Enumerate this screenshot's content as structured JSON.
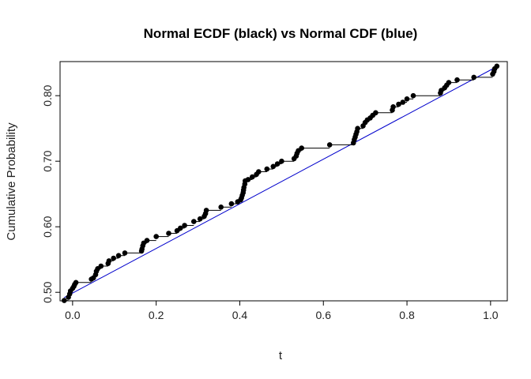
{
  "chart_data": {
    "type": "line",
    "title": "Normal ECDF (black) vs Normal CDF (blue)",
    "xlabel": "t",
    "ylabel": "Cumulative Probability",
    "xlim": [
      -0.03,
      1.04
    ],
    "ylim": [
      0.487,
      0.852
    ],
    "xticks": [
      0.0,
      0.2,
      0.4,
      0.6,
      0.8,
      1.0
    ],
    "xtick_labels": [
      "0.0",
      "0.2",
      "0.4",
      "0.6",
      "0.8",
      "1.0"
    ],
    "yticks": [
      0.5,
      0.6,
      0.7,
      0.8
    ],
    "ytick_labels": [
      "0.50",
      "0.60",
      "0.70",
      "0.80"
    ],
    "grid": false,
    "legend": "none",
    "colors": {
      "ecdf": "#000000",
      "cdf": "#0000cc",
      "frame": "#000000"
    },
    "series": [
      {
        "style": "step-points",
        "color": "#000000",
        "points": [
          [
            -0.02,
            0.4875
          ],
          [
            -0.01,
            0.4925
          ],
          [
            -0.007,
            0.4975
          ],
          [
            -0.005,
            0.502
          ],
          [
            0.0,
            0.506
          ],
          [
            0.003,
            0.509
          ],
          [
            0.005,
            0.512
          ],
          [
            0.008,
            0.515
          ],
          [
            0.045,
            0.52
          ],
          [
            0.05,
            0.522
          ],
          [
            0.055,
            0.527
          ],
          [
            0.057,
            0.532
          ],
          [
            0.06,
            0.536
          ],
          [
            0.068,
            0.54
          ],
          [
            0.085,
            0.544
          ],
          [
            0.087,
            0.548
          ],
          [
            0.098,
            0.552
          ],
          [
            0.11,
            0.556
          ],
          [
            0.125,
            0.56
          ],
          [
            0.165,
            0.563
          ],
          [
            0.166,
            0.566
          ],
          [
            0.168,
            0.571
          ],
          [
            0.17,
            0.575
          ],
          [
            0.178,
            0.579
          ],
          [
            0.2,
            0.585
          ],
          [
            0.23,
            0.59
          ],
          [
            0.25,
            0.594
          ],
          [
            0.258,
            0.598
          ],
          [
            0.268,
            0.602
          ],
          [
            0.29,
            0.608
          ],
          [
            0.305,
            0.612
          ],
          [
            0.315,
            0.616
          ],
          [
            0.318,
            0.62
          ],
          [
            0.32,
            0.625
          ],
          [
            0.355,
            0.63
          ],
          [
            0.38,
            0.635
          ],
          [
            0.395,
            0.638
          ],
          [
            0.402,
            0.641
          ],
          [
            0.404,
            0.644
          ],
          [
            0.406,
            0.648
          ],
          [
            0.408,
            0.652
          ],
          [
            0.409,
            0.656
          ],
          [
            0.41,
            0.66
          ],
          [
            0.412,
            0.665
          ],
          [
            0.413,
            0.67
          ],
          [
            0.42,
            0.672
          ],
          [
            0.43,
            0.676
          ],
          [
            0.44,
            0.68
          ],
          [
            0.445,
            0.684
          ],
          [
            0.465,
            0.688
          ],
          [
            0.48,
            0.692
          ],
          [
            0.49,
            0.696
          ],
          [
            0.5,
            0.7
          ],
          [
            0.53,
            0.704
          ],
          [
            0.535,
            0.708
          ],
          [
            0.537,
            0.712
          ],
          [
            0.54,
            0.716
          ],
          [
            0.548,
            0.72
          ],
          [
            0.615,
            0.725
          ],
          [
            0.672,
            0.728
          ],
          [
            0.674,
            0.733
          ],
          [
            0.676,
            0.737
          ],
          [
            0.678,
            0.741
          ],
          [
            0.68,
            0.745
          ],
          [
            0.682,
            0.75
          ],
          [
            0.695,
            0.754
          ],
          [
            0.7,
            0.759
          ],
          [
            0.705,
            0.763
          ],
          [
            0.712,
            0.766
          ],
          [
            0.718,
            0.77
          ],
          [
            0.725,
            0.774
          ],
          [
            0.765,
            0.778
          ],
          [
            0.767,
            0.783
          ],
          [
            0.78,
            0.787
          ],
          [
            0.79,
            0.79
          ],
          [
            0.8,
            0.795
          ],
          [
            0.815,
            0.8
          ],
          [
            0.88,
            0.804
          ],
          [
            0.882,
            0.808
          ],
          [
            0.89,
            0.812
          ],
          [
            0.895,
            0.816
          ],
          [
            0.9,
            0.82
          ],
          [
            0.92,
            0.824
          ],
          [
            0.96,
            0.828
          ],
          [
            1.005,
            0.833
          ],
          [
            1.008,
            0.837
          ],
          [
            1.01,
            0.841
          ],
          [
            1.015,
            0.845
          ]
        ]
      },
      {
        "style": "line",
        "color": "#0000cc",
        "points": [
          [
            -0.02,
            0.492
          ],
          [
            1.02,
            0.846
          ]
        ]
      }
    ]
  }
}
